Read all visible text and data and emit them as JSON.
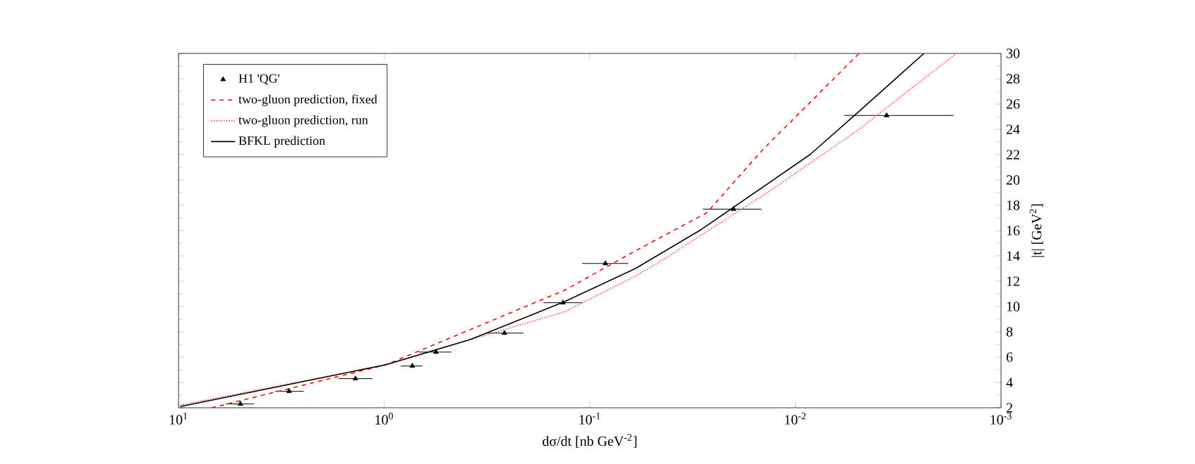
{
  "chart_data": {
    "type": "line",
    "xlabel": "dσ/dt   [nb GeV$^{-2}$]",
    "ylabel": "|t| [GeV$^{2}$]",
    "log": "x",
    "xlim": [
      10,
      0.001
    ],
    "xticks": [
      {
        "value": 10,
        "label": "10$^{1}$"
      },
      {
        "value": 1,
        "label": "10$^{0}$"
      },
      {
        "value": 0.1,
        "label": "10$^{-1}$"
      },
      {
        "value": 0.01,
        "label": "10$^{-2}$"
      },
      {
        "value": 0.001,
        "label": "10$^{-3}$"
      }
    ],
    "ylim": [
      2,
      30
    ],
    "yticks": [
      2,
      4,
      6,
      8,
      10,
      12,
      14,
      16,
      18,
      20,
      22,
      24,
      26,
      28,
      30
    ],
    "legend": "top left",
    "series": [
      {
        "name": "H1 'QG'",
        "type": "scatter",
        "marker": "triangle",
        "color": "#000000",
        "x": [
          5.0,
          2.9,
          1.38,
          0.73,
          0.56,
          0.26,
          0.135,
          0.084,
          0.02,
          0.0036
        ],
        "values": [
          2.3,
          3.3,
          4.3,
          5.3,
          6.4,
          7.9,
          10.3,
          13.4,
          17.7,
          25.1
        ],
        "xerrors": [
          [
            4.3,
            5.9
          ],
          [
            2.46,
            3.38
          ],
          [
            1.14,
            1.67
          ],
          [
            0.65,
            0.83
          ],
          [
            0.47,
            0.68
          ],
          [
            0.21,
            0.32
          ],
          [
            0.108,
            0.168
          ],
          [
            0.065,
            0.109
          ],
          [
            0.0146,
            0.0282
          ],
          [
            0.0017,
            0.0058
          ]
        ]
      },
      {
        "name": "two-gluon prediction, fixed",
        "line_style": "dashed",
        "color": "#ff0000",
        "x": [
          6.9,
          0.98,
          0.132,
          0.06,
          0.027,
          0.0144,
          0.0049
        ],
        "values": [
          2.0,
          5.4,
          11.3,
          14.4,
          17.4,
          22.4,
          30
        ]
      },
      {
        "name": "two-gluon prediction, run",
        "line_style": "dotted",
        "color": "#ff5050",
        "x": [
          9.8,
          0.98,
          0.132,
          0.06,
          0.046,
          0.0137,
          0.005,
          0.00165
        ],
        "values": [
          2.2,
          5.4,
          9.6,
          12.4,
          13.5,
          19.0,
          23.9,
          30
        ]
      },
      {
        "name": "BFKL prediction",
        "line_style": "solid",
        "color": "#000000",
        "x": [
          9.8,
          0.98,
          0.38,
          0.132,
          0.06,
          0.0286,
          0.0085,
          0.005,
          0.00237
        ],
        "values": [
          2.1,
          5.4,
          7.4,
          10.4,
          13.0,
          16.1,
          22.0,
          25.3,
          30
        ]
      }
    ]
  }
}
